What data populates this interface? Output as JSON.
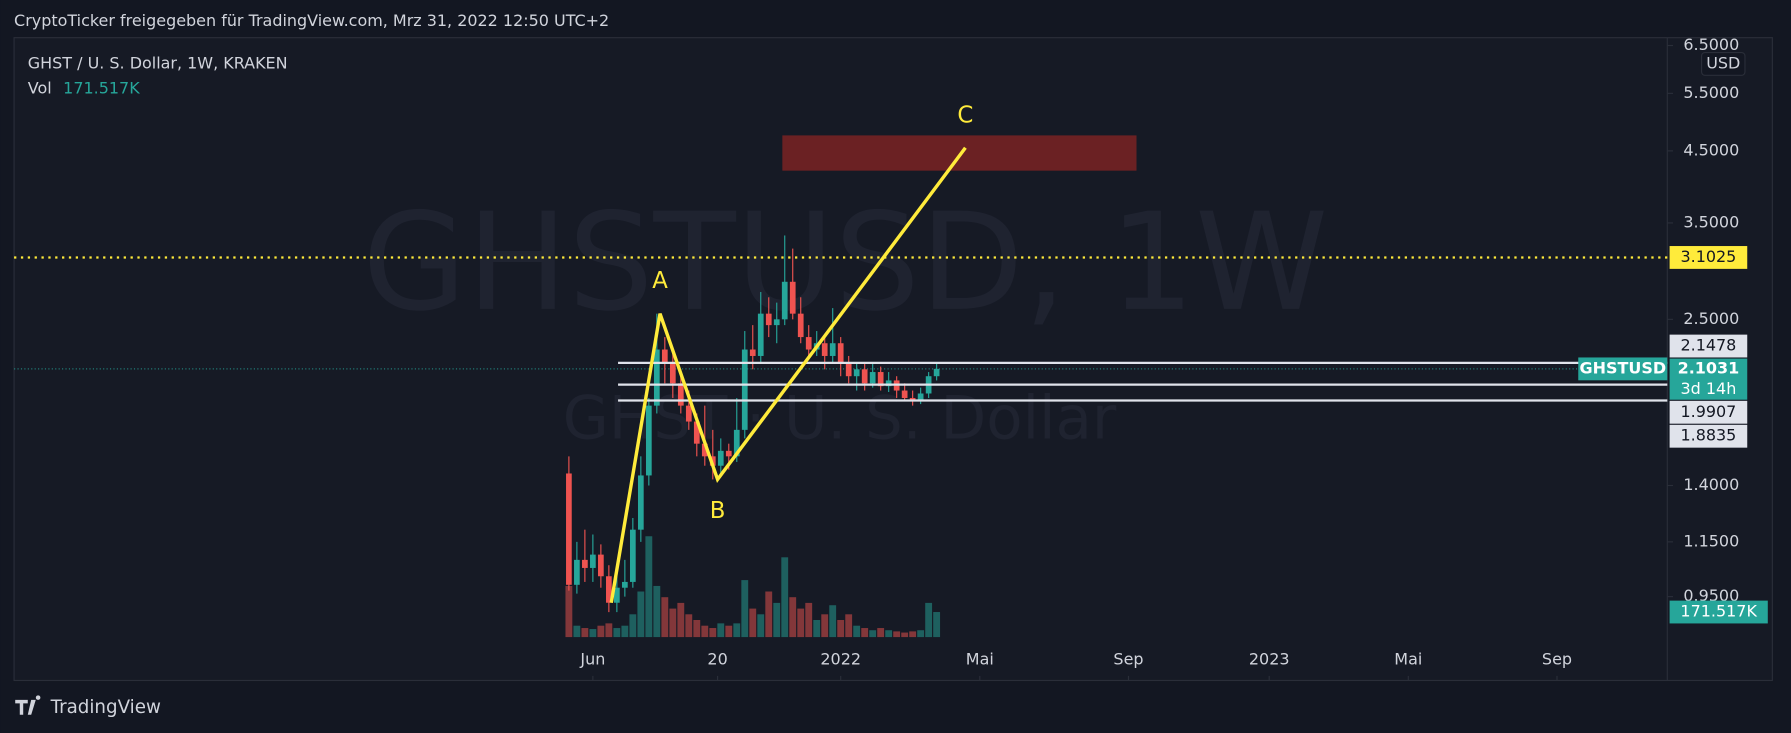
{
  "chart_data": {
    "type": "candlestick",
    "header": "CryptoTicker freigegeben für TradingView.com, Mrz 31, 2022 12:50 UTC+2",
    "title": "GHST / U. S. Dollar, 1W, KRAKEN",
    "volume_legend": "Vol",
    "last_volume": {
      "value": 171517,
      "label": "171.517K"
    },
    "watermark": [
      "GHSTUSD, 1W",
      "GHST · U. S. Dollar"
    ],
    "currency": "USD",
    "footer": "TradingView",
    "log_scale": true,
    "up_color": "#26a69a",
    "down_color": "#ef5350",
    "ylim": [
      0.709,
      6.68
    ],
    "yticks": [
      {
        "value": 6.5,
        "label": "6.5000"
      },
      {
        "value": 5.5,
        "label": "5.5000"
      },
      {
        "value": 4.5,
        "label": "4.5000"
      },
      {
        "value": 3.5,
        "label": "3.5000"
      },
      {
        "value": 2.5,
        "label": "2.5000"
      },
      {
        "value": 1.4,
        "label": "1.4000"
      },
      {
        "value": 1.15,
        "label": "1.1500"
      },
      {
        "value": 0.95,
        "label": "0.9500"
      }
    ],
    "xlim": [
      -69.4,
      137.4
    ],
    "xticks": [
      {
        "value": 3,
        "label": "Jun"
      },
      {
        "value": 18.6,
        "label": "20"
      },
      {
        "value": 34,
        "label": "2022"
      },
      {
        "value": 51.4,
        "label": "Mai"
      },
      {
        "value": 70,
        "label": "Sep"
      },
      {
        "value": 87.6,
        "label": "2023"
      },
      {
        "value": 105,
        "label": "Mai"
      },
      {
        "value": 123.6,
        "label": "Sep"
      }
    ],
    "open": [
      1.46,
      0.99,
      1.08,
      1.05,
      1.1,
      1.02,
      0.93,
      0.98,
      1.0,
      1.2,
      1.45,
      1.85,
      2.25,
      2.15,
      2.0,
      1.85,
      1.75,
      1.62,
      1.55,
      1.5,
      1.58,
      1.55,
      1.7,
      2.25,
      2.2,
      2.55,
      2.45,
      2.5,
      2.85,
      2.55,
      2.35,
      2.25,
      2.3,
      2.2,
      2.3,
      2.15,
      2.05,
      2.1,
      2.0,
      2.08,
      1.98,
      2.02,
      1.95,
      1.9,
      1.88,
      1.93,
      2.05
    ],
    "high": [
      1.55,
      1.15,
      1.2,
      1.18,
      1.14,
      1.06,
      1.03,
      1.08,
      1.25,
      1.55,
      1.9,
      2.55,
      2.35,
      2.25,
      2.1,
      1.95,
      1.8,
      1.85,
      1.7,
      1.65,
      1.62,
      1.9,
      2.4,
      2.45,
      2.75,
      2.7,
      2.65,
      3.35,
      3.2,
      2.7,
      2.45,
      2.4,
      2.35,
      2.6,
      2.35,
      2.2,
      2.15,
      2.15,
      2.15,
      2.12,
      2.08,
      2.05,
      2.0,
      1.95,
      1.97,
      2.08,
      2.15
    ],
    "low": [
      0.97,
      0.96,
      1.0,
      1.0,
      0.98,
      0.9,
      0.9,
      0.95,
      0.98,
      1.15,
      1.4,
      1.8,
      2.0,
      1.9,
      1.8,
      1.7,
      1.55,
      1.5,
      1.43,
      1.45,
      1.48,
      1.52,
      1.65,
      2.1,
      2.15,
      2.35,
      2.3,
      2.45,
      2.5,
      2.3,
      2.2,
      2.2,
      2.1,
      2.15,
      2.05,
      2.0,
      1.95,
      1.95,
      1.97,
      1.95,
      1.94,
      1.9,
      1.88,
      1.85,
      1.86,
      1.9,
      2.02
    ],
    "close": [
      0.99,
      1.08,
      1.05,
      1.1,
      1.02,
      0.93,
      0.98,
      1.0,
      1.2,
      1.45,
      1.85,
      2.25,
      2.15,
      2.0,
      1.85,
      1.75,
      1.62,
      1.55,
      1.5,
      1.58,
      1.55,
      1.7,
      2.25,
      2.2,
      2.55,
      2.45,
      2.5,
      2.85,
      2.55,
      2.35,
      2.25,
      2.3,
      2.2,
      2.3,
      2.15,
      2.05,
      2.1,
      2.0,
      2.08,
      1.98,
      2.02,
      1.95,
      1.9,
      1.88,
      1.93,
      2.05,
      2.1031
    ],
    "volume_ylim": [
      0,
      1000000
    ],
    "volume": [
      350000,
      78000,
      62000,
      55000,
      78000,
      94000,
      62000,
      78000,
      156000,
      312000,
      690000,
      350000,
      273000,
      195000,
      234000,
      156000,
      117000,
      78000,
      62000,
      94000,
      78000,
      94000,
      390000,
      195000,
      156000,
      312000,
      234000,
      546000,
      273000,
      195000,
      234000,
      117000,
      156000,
      218000,
      117000,
      156000,
      78000,
      62000,
      47000,
      62000,
      47000,
      39000,
      31000,
      39000,
      47000,
      234000,
      171517
    ],
    "levels": [
      {
        "value": 2.1478,
        "label": "2.1478"
      },
      {
        "value": 1.9907,
        "label": "1.9907"
      },
      {
        "value": 1.8835,
        "label": "1.8835"
      }
    ],
    "last_price": {
      "value": 2.1031,
      "label": "2.1031",
      "name": "GHSTUSD",
      "countdown": "3d 14h"
    },
    "dotted_level": {
      "value": 3.1025,
      "label": "3.1025"
    },
    "zone": {
      "x": [
        26.7,
        71
      ],
      "y": [
        4.2,
        4.75
      ]
    },
    "wave": {
      "points": [
        {
          "x": 5.3,
          "y": 0.93
        },
        {
          "x": 11.4,
          "y": 2.55,
          "label": "A"
        },
        {
          "x": 18.6,
          "y": 1.43,
          "label": "B"
        },
        {
          "x": 49.6,
          "y": 4.55,
          "label": "C"
        }
      ]
    }
  }
}
